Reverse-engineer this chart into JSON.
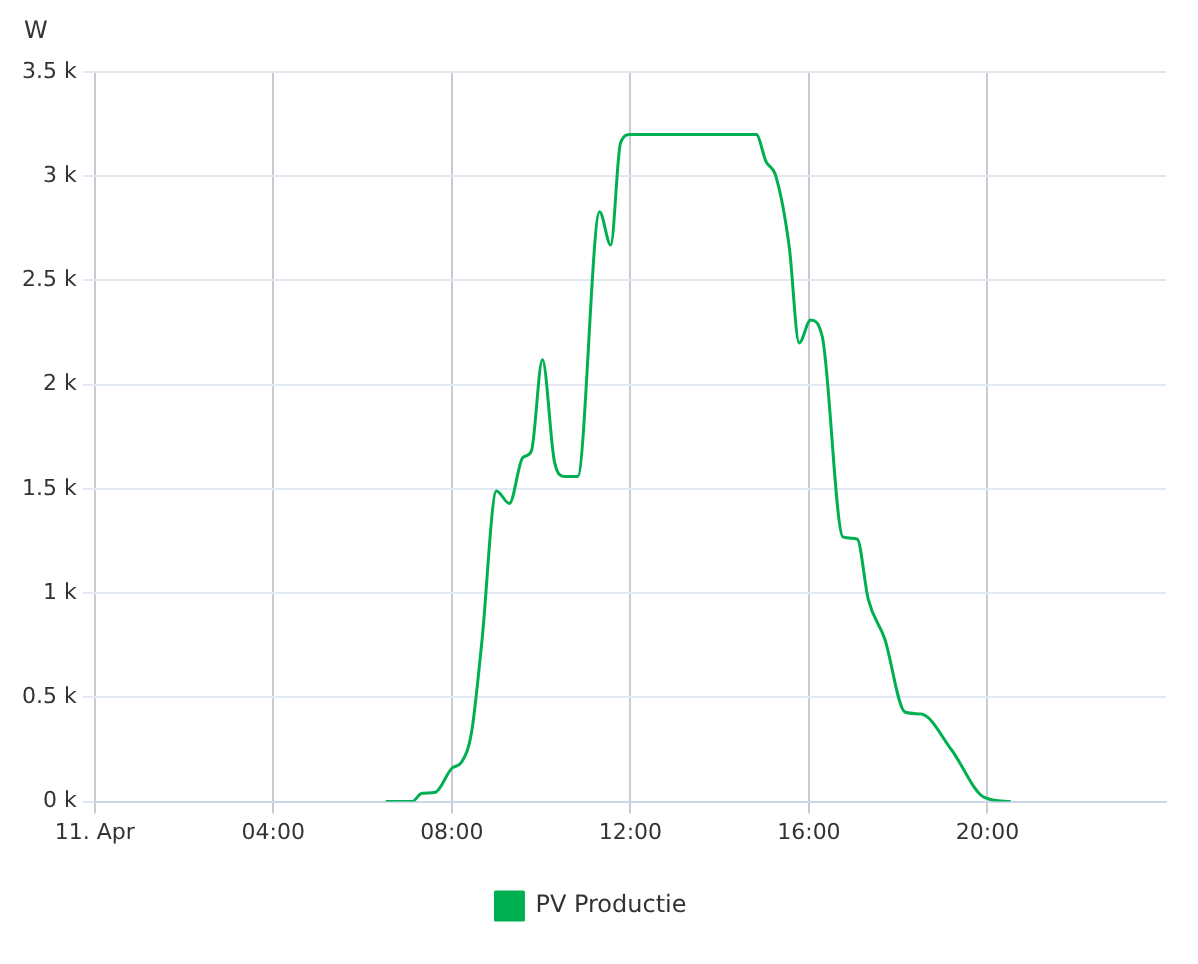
{
  "chart_data": {
    "type": "line",
    "ylabel": "W",
    "xlim": [
      0,
      24
    ],
    "ylim": [
      0,
      3500
    ],
    "xticks": [
      {
        "value": 0,
        "label": "11. Apr"
      },
      {
        "value": 4,
        "label": "04:00"
      },
      {
        "value": 8,
        "label": "08:00"
      },
      {
        "value": 12,
        "label": "12:00"
      },
      {
        "value": 16,
        "label": "16:00"
      },
      {
        "value": 20,
        "label": "20:00"
      }
    ],
    "yticks": [
      {
        "value": 0,
        "label": "0 k"
      },
      {
        "value": 500,
        "label": "0.5 k"
      },
      {
        "value": 1000,
        "label": "1 k"
      },
      {
        "value": 1500,
        "label": "1.5 k"
      },
      {
        "value": 2000,
        "label": "2 k"
      },
      {
        "value": 2500,
        "label": "2.5 k"
      },
      {
        "value": 3000,
        "label": "3 k"
      },
      {
        "value": 3500,
        "label": "3.5 k"
      }
    ],
    "grid": true,
    "legend": "bottom",
    "marker": "none",
    "line_style": "solid",
    "series": [
      {
        "name": "PV Productie",
        "color": "#00b050",
        "x": [
          6.52,
          7.11,
          7.33,
          7.63,
          8.0,
          8.22,
          8.44,
          8.67,
          9.0,
          9.29,
          9.59,
          9.78,
          10.03,
          10.3,
          10.52,
          10.82,
          11.31,
          11.56,
          11.78,
          12.0,
          14.82,
          15.04,
          15.26,
          15.56,
          15.78,
          16.04,
          16.3,
          16.76,
          17.08,
          17.33,
          17.7,
          18.15,
          18.52,
          19.19,
          19.93,
          20.52
        ],
        "values": [
          0,
          0,
          40,
          45,
          160,
          190,
          330,
          760,
          1490,
          1430,
          1650,
          1680,
          2120,
          1630,
          1560,
          1560,
          2830,
          2670,
          3160,
          3200,
          3200,
          3070,
          3000,
          2660,
          2200,
          2310,
          2230,
          1270,
          1260,
          970,
          780,
          430,
          420,
          250,
          20,
          0
        ]
      }
    ]
  }
}
